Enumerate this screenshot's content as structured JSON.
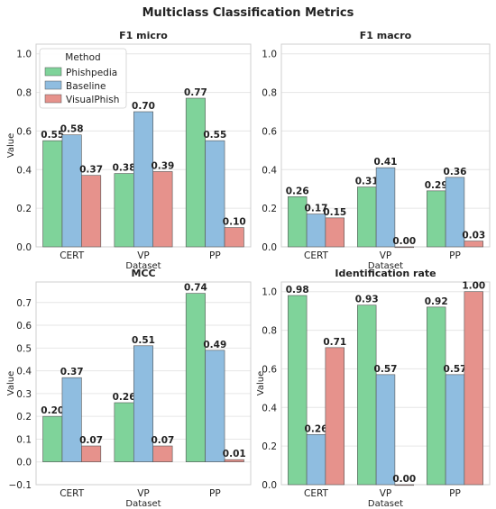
{
  "figure_title": "Multiclass Classification Metrics",
  "legend": {
    "title": "Method",
    "items": [
      "Phishpedia",
      "Baseline",
      "VisualPhish"
    ],
    "placement": "upper-left of first panel"
  },
  "colors": {
    "Phishpedia": "#7fd39a",
    "Baseline": "#8fbde0",
    "VisualPhish": "#e6928c"
  },
  "chart_data": [
    {
      "type": "bar",
      "title": "F1 micro",
      "xlabel": "Dataset",
      "ylabel": "Value",
      "categories": [
        "CERT",
        "VP",
        "PP"
      ],
      "ylim": [
        0,
        1.05
      ],
      "yticks": [
        "0.0",
        "0.2",
        "0.4",
        "0.6",
        "0.8",
        "1.0"
      ],
      "ytick_values": [
        0,
        0.2,
        0.4,
        0.6,
        0.8,
        1.0
      ],
      "grid": true,
      "series": [
        {
          "name": "Phishpedia",
          "values": [
            0.55,
            0.38,
            0.77
          ],
          "labels": [
            "0.55",
            "0.38",
            "0.77"
          ]
        },
        {
          "name": "Baseline",
          "values": [
            0.58,
            0.7,
            0.55
          ],
          "labels": [
            "0.58",
            "0.70",
            "0.55"
          ]
        },
        {
          "name": "VisualPhish",
          "values": [
            0.37,
            0.39,
            0.1
          ],
          "labels": [
            "0.37",
            "0.39",
            "0.10"
          ]
        }
      ]
    },
    {
      "type": "bar",
      "title": "F1 macro",
      "xlabel": "Dataset",
      "ylabel": "",
      "categories": [
        "CERT",
        "VP",
        "PP"
      ],
      "ylim": [
        0,
        1.05
      ],
      "yticks": [
        "0.0",
        "0.2",
        "0.4",
        "0.6",
        "0.8",
        "1.0"
      ],
      "ytick_values": [
        0,
        0.2,
        0.4,
        0.6,
        0.8,
        1.0
      ],
      "grid": true,
      "series": [
        {
          "name": "Phishpedia",
          "values": [
            0.26,
            0.31,
            0.29
          ],
          "labels": [
            "0.26",
            "0.31",
            "0.29"
          ]
        },
        {
          "name": "Baseline",
          "values": [
            0.17,
            0.41,
            0.36
          ],
          "labels": [
            "0.17",
            "0.41",
            "0.36"
          ]
        },
        {
          "name": "VisualPhish",
          "values": [
            0.15,
            0.0,
            0.03
          ],
          "labels": [
            "0.15",
            "0.00",
            "0.03"
          ]
        }
      ]
    },
    {
      "type": "bar",
      "title": "MCC",
      "xlabel": "Dataset",
      "ylabel": "Value",
      "categories": [
        "CERT",
        "VP",
        "PP"
      ],
      "ylim": [
        -0.1,
        0.79
      ],
      "yticks": [
        "−0.1",
        "0.0",
        "0.1",
        "0.2",
        "0.3",
        "0.4",
        "0.5",
        "0.6",
        "0.7"
      ],
      "ytick_values": [
        -0.1,
        0,
        0.1,
        0.2,
        0.3,
        0.4,
        0.5,
        0.6,
        0.7
      ],
      "grid": true,
      "series": [
        {
          "name": "Phishpedia",
          "values": [
            0.2,
            0.26,
            0.74
          ],
          "labels": [
            "0.20",
            "0.26",
            "0.74"
          ]
        },
        {
          "name": "Baseline",
          "values": [
            0.37,
            0.51,
            0.49
          ],
          "labels": [
            "0.37",
            "0.51",
            "0.49"
          ]
        },
        {
          "name": "VisualPhish",
          "values": [
            0.07,
            0.07,
            0.01
          ],
          "labels": [
            "0.07",
            "0.07",
            "0.01"
          ]
        }
      ]
    },
    {
      "type": "bar",
      "title": "Identification rate",
      "xlabel": "Dataset",
      "ylabel": "Value",
      "categories": [
        "CERT",
        "VP",
        "PP"
      ],
      "ylim": [
        0,
        1.05
      ],
      "yticks": [
        "0.0",
        "0.2",
        "0.4",
        "0.6",
        "0.8",
        "1.0"
      ],
      "ytick_values": [
        0,
        0.2,
        0.4,
        0.6,
        0.8,
        1.0
      ],
      "grid": true,
      "series": [
        {
          "name": "Phishpedia",
          "values": [
            0.98,
            0.93,
            0.92
          ],
          "labels": [
            "0.98",
            "0.93",
            "0.92"
          ]
        },
        {
          "name": "Baseline",
          "values": [
            0.26,
            0.57,
            0.57
          ],
          "labels": [
            "0.26",
            "0.57",
            "0.57"
          ]
        },
        {
          "name": "VisualPhish",
          "values": [
            0.71,
            0.0,
            1.0
          ],
          "labels": [
            "0.71",
            "0.00",
            "1.00"
          ]
        }
      ]
    }
  ]
}
